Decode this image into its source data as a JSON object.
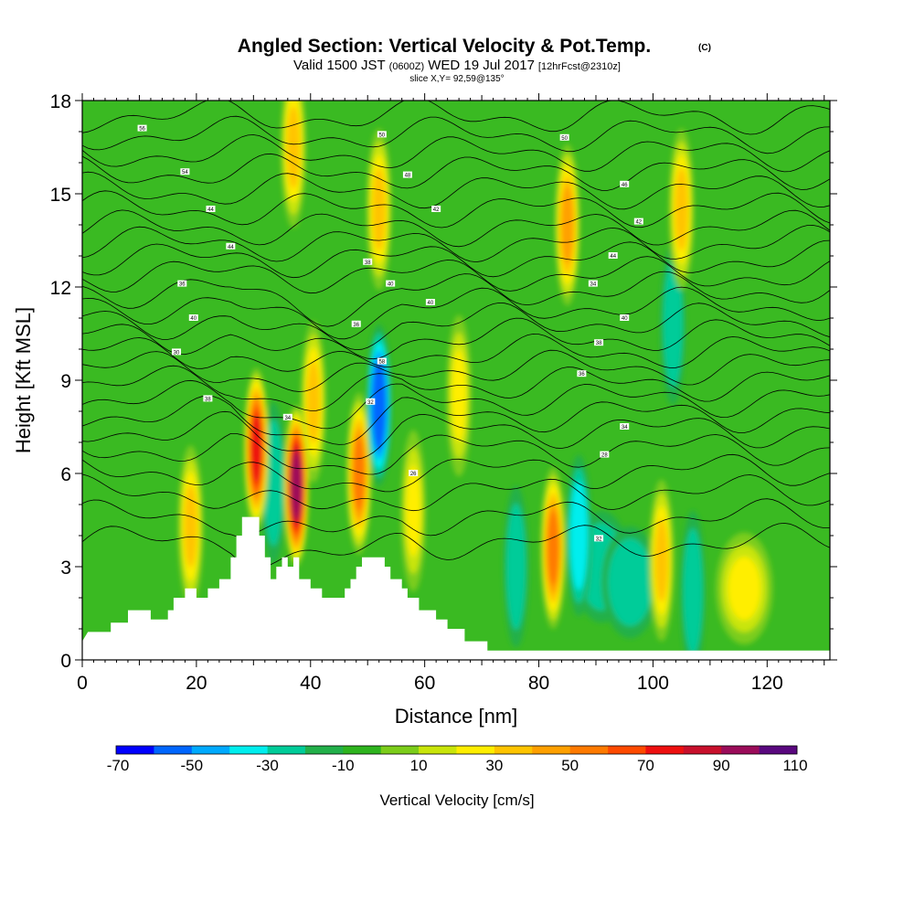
{
  "chart_data": {
    "type": "heatmap",
    "title": "Angled Section: Vertical Velocity & Pot.Temp.",
    "title_mark": "(C)",
    "subtitle": {
      "valid": "Valid 1500 JST",
      "zulu": "(0600Z)",
      "date": "WED 19 Jul 2017",
      "forecast": "[12hrFcst@2310z]"
    },
    "slice": "slice X,Y= 92,59@135°",
    "xlabel": "Distance [nm]",
    "ylabel": "Height [Kft MSL]",
    "xlim": [
      0,
      131
    ],
    "ylim": [
      0,
      18
    ],
    "xticks": [
      "0",
      "20",
      "40",
      "60",
      "80",
      "100",
      "120"
    ],
    "yticks": [
      "0",
      "3",
      "6",
      "9",
      "12",
      "15",
      "18"
    ],
    "colorbar": {
      "label": "Vertical Velocity [cm/s]",
      "tick_labels": [
        "-70",
        "-50",
        "-30",
        "-10",
        "10",
        "30",
        "50",
        "70",
        "90",
        "110"
      ],
      "colors": [
        "#0000ff",
        "#0066ff",
        "#00aaff",
        "#00eeee",
        "#00cc99",
        "#22b04a",
        "#2eb41e",
        "#7ccd1a",
        "#c9e50a",
        "#ffee00",
        "#ffc400",
        "#ffa000",
        "#ff7a00",
        "#ff4a00",
        "#ee1010",
        "#c8102c",
        "#9b0c5a",
        "#5a087f"
      ]
    },
    "features": [
      {
        "x": 19,
        "y": 4.3,
        "w": 35
      },
      {
        "x": 30.5,
        "y": 6.8,
        "w": 75
      },
      {
        "x": 33.5,
        "y": 5.7,
        "w": -28
      },
      {
        "x": 37.5,
        "y": 5.6,
        "w": 95
      },
      {
        "x": 40.5,
        "y": 8.3,
        "w": 30
      },
      {
        "x": 48.5,
        "y": 6.0,
        "w": 55
      },
      {
        "x": 52,
        "y": 8.2,
        "w": -55
      },
      {
        "x": 52,
        "y": 14.5,
        "w": 30
      },
      {
        "x": 37,
        "y": 16.5,
        "w": 30
      },
      {
        "x": 58,
        "y": 4.8,
        "w": 28
      },
      {
        "x": 66,
        "y": 8.5,
        "w": 25
      },
      {
        "x": 76,
        "y": 3.0,
        "w": -25
      },
      {
        "x": 82.5,
        "y": 3.6,
        "w": 55
      },
      {
        "x": 85,
        "y": 14.0,
        "w": 45
      },
      {
        "x": 87,
        "y": 4.0,
        "w": -35
      },
      {
        "x": 91,
        "y": 3.0,
        "w": -20
      },
      {
        "x": 96,
        "y": 2.5,
        "w": -20
      },
      {
        "x": 101.5,
        "y": 3.2,
        "w": 35
      },
      {
        "x": 105,
        "y": 14.5,
        "w": 35
      },
      {
        "x": 107,
        "y": 2.2,
        "w": -25
      },
      {
        "x": 103.5,
        "y": 10.8,
        "w": -25
      },
      {
        "x": 116,
        "y": 2.3,
        "w": 20
      }
    ],
    "terrain": [
      [
        0,
        0.6
      ],
      [
        1,
        0.9
      ],
      [
        5,
        0.9
      ],
      [
        5,
        1.2
      ],
      [
        8,
        1.2
      ],
      [
        8,
        1.6
      ],
      [
        12,
        1.6
      ],
      [
        12,
        1.3
      ],
      [
        15,
        1.3
      ],
      [
        15,
        1.6
      ],
      [
        16,
        1.6
      ],
      [
        16,
        2.0
      ],
      [
        18,
        2.0
      ],
      [
        18,
        2.3
      ],
      [
        20,
        2.3
      ],
      [
        20,
        2.0
      ],
      [
        22,
        2.0
      ],
      [
        22,
        2.3
      ],
      [
        24,
        2.3
      ],
      [
        24,
        2.6
      ],
      [
        26,
        2.6
      ],
      [
        26,
        3.3
      ],
      [
        27,
        3.3
      ],
      [
        27,
        4.0
      ],
      [
        28,
        4.0
      ],
      [
        28,
        4.6
      ],
      [
        31,
        4.6
      ],
      [
        31,
        4.0
      ],
      [
        32,
        4.0
      ],
      [
        32,
        3.3
      ],
      [
        33,
        3.3
      ],
      [
        33,
        2.6
      ],
      [
        34,
        2.6
      ],
      [
        34,
        3.0
      ],
      [
        35,
        3.0
      ],
      [
        35,
        3.3
      ],
      [
        36,
        3.3
      ],
      [
        36,
        3.0
      ],
      [
        37,
        3.0
      ],
      [
        37,
        3.3
      ],
      [
        38,
        3.3
      ],
      [
        38,
        2.6
      ],
      [
        40,
        2.6
      ],
      [
        40,
        2.3
      ],
      [
        42,
        2.3
      ],
      [
        42,
        2.0
      ],
      [
        46,
        2.0
      ],
      [
        46,
        2.3
      ],
      [
        47,
        2.3
      ],
      [
        47,
        2.6
      ],
      [
        48,
        2.6
      ],
      [
        48,
        3.0
      ],
      [
        49,
        3.0
      ],
      [
        49,
        3.3
      ],
      [
        53,
        3.3
      ],
      [
        53,
        3.0
      ],
      [
        54,
        3.0
      ],
      [
        54,
        2.6
      ],
      [
        56,
        2.6
      ],
      [
        56,
        2.3
      ],
      [
        57,
        2.3
      ],
      [
        57,
        2.0
      ],
      [
        59,
        2.0
      ],
      [
        59,
        1.6
      ],
      [
        62,
        1.6
      ],
      [
        62,
        1.3
      ],
      [
        64,
        1.3
      ],
      [
        64,
        1.0
      ],
      [
        67,
        1.0
      ],
      [
        67,
        0.6
      ],
      [
        71,
        0.6
      ],
      [
        71,
        0.3
      ],
      [
        131,
        0.3
      ]
    ],
    "isentropes": {
      "levels_kft": [
        3.8,
        4.6,
        5.4,
        6.1,
        6.8,
        7.4,
        7.9,
        8.4,
        8.9,
        9.4,
        9.9,
        10.4,
        10.9,
        11.4,
        11.9,
        12.4,
        12.9,
        13.4,
        13.9,
        14.5,
        15.1,
        15.7,
        16.3,
        16.9,
        17.5
      ],
      "labels": [
        {
          "text": "56",
          "x": 10.5,
          "y": 17.1
        },
        {
          "text": "54",
          "x": 18,
          "y": 15.7
        },
        {
          "text": "44",
          "x": 22.5,
          "y": 14.5
        },
        {
          "text": "44",
          "x": 26,
          "y": 13.3
        },
        {
          "text": "36",
          "x": 17.5,
          "y": 12.1
        },
        {
          "text": "40",
          "x": 19.5,
          "y": 11.0
        },
        {
          "text": "30",
          "x": 16.5,
          "y": 9.9
        },
        {
          "text": "38",
          "x": 22,
          "y": 8.4
        },
        {
          "text": "34",
          "x": 36,
          "y": 7.8
        },
        {
          "text": "32",
          "x": 50.5,
          "y": 8.3
        },
        {
          "text": "58",
          "x": 52.5,
          "y": 9.6
        },
        {
          "text": "36",
          "x": 48,
          "y": 10.8
        },
        {
          "text": "50",
          "x": 52.5,
          "y": 16.9
        },
        {
          "text": "48",
          "x": 57,
          "y": 15.6
        },
        {
          "text": "42",
          "x": 62,
          "y": 14.5
        },
        {
          "text": "38",
          "x": 50,
          "y": 12.8
        },
        {
          "text": "40",
          "x": 54,
          "y": 12.1
        },
        {
          "text": "40",
          "x": 61,
          "y": 11.5
        },
        {
          "text": "50",
          "x": 84.5,
          "y": 16.8
        },
        {
          "text": "46",
          "x": 95,
          "y": 15.3
        },
        {
          "text": "42",
          "x": 97.5,
          "y": 14.1
        },
        {
          "text": "44",
          "x": 93,
          "y": 13.0
        },
        {
          "text": "34",
          "x": 89.5,
          "y": 12.1
        },
        {
          "text": "40",
          "x": 95,
          "y": 11.0
        },
        {
          "text": "38",
          "x": 90.5,
          "y": 10.2
        },
        {
          "text": "36",
          "x": 87.5,
          "y": 9.2
        },
        {
          "text": "34",
          "x": 95,
          "y": 7.5
        },
        {
          "text": "28",
          "x": 91.5,
          "y": 6.6
        },
        {
          "text": "26",
          "x": 58,
          "y": 6.0
        },
        {
          "text": "32",
          "x": 90.5,
          "y": 3.9
        }
      ]
    }
  }
}
